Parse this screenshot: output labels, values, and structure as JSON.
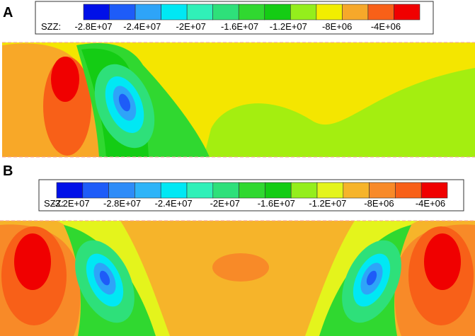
{
  "panels": [
    {
      "label": "A",
      "legend": {
        "title": "SZZ:",
        "ticks": [
          "-2.8E+07",
          "-2.4E+07",
          "-2E+07",
          "-1.6E+07",
          "-1.2E+07",
          "-8E+06",
          "-4E+06"
        ],
        "colors": [
          "#0010e8",
          "#1e5cf8",
          "#2ea4f8",
          "#00e8f4",
          "#30f0b8",
          "#2ee07a",
          "#30d830",
          "#14cc14",
          "#94ee1c",
          "#f2ee00",
          "#f6a82a",
          "#f86018",
          "#f00000"
        ]
      }
    },
    {
      "label": "B",
      "legend": {
        "title": "SZZ:",
        "ticks": [
          "-3.2E+07",
          "-2.8E+07",
          "-2.4E+07",
          "-2E+07",
          "-1.6E+07",
          "-1.2E+07",
          "-8E+06",
          "-4E+06"
        ],
        "colors": [
          "#0010e8",
          "#1e5cf8",
          "#2e8cf8",
          "#2eb4f8",
          "#00e8f4",
          "#30f0b8",
          "#2ee07a",
          "#30d830",
          "#14cc14",
          "#94ee1c",
          "#e4f41c",
          "#f6b42a",
          "#f88a28",
          "#f86018",
          "#f00000"
        ]
      }
    }
  ]
}
